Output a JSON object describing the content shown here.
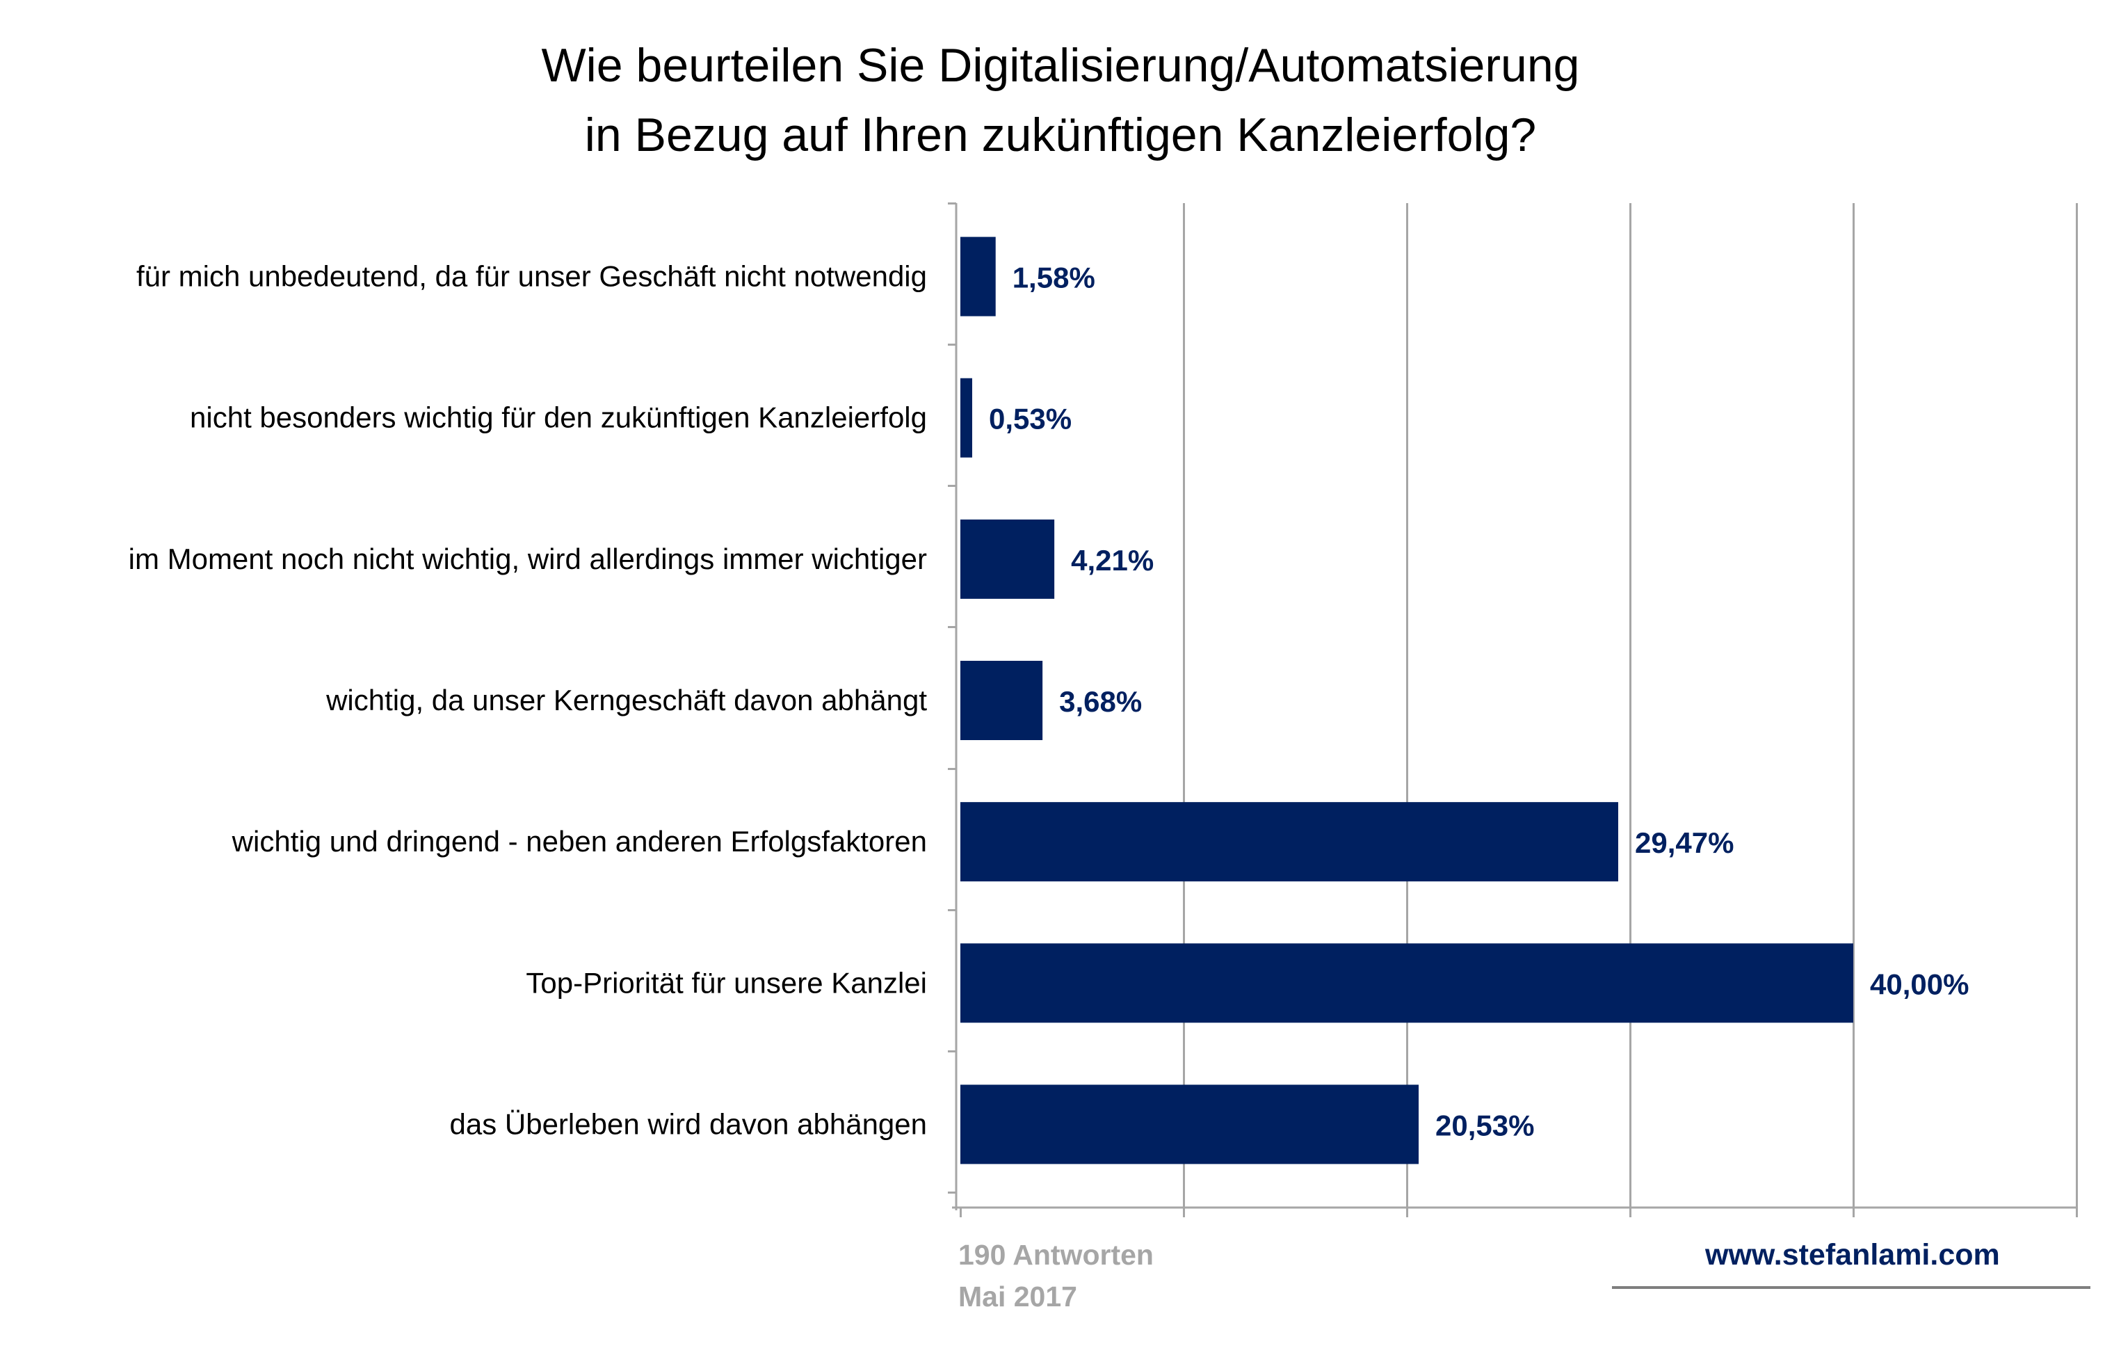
{
  "chart_data": {
    "type": "bar",
    "orientation": "horizontal",
    "title_lines": [
      "Wie beurteilen Sie Digitalisierung/Automatsierung",
      "in Bezug auf Ihren zukünftigen Kanzleierfolg?"
    ],
    "categories": [
      "für mich unbedeutend, da für unser Geschäft nicht notwendig",
      "nicht besonders wichtig für den zukünftigen Kanzleierfolg",
      "im Moment noch nicht wichtig, wird allerdings immer wichtiger",
      "wichtig, da unser Kerngeschäft davon abhängt",
      "wichtig und dringend - neben anderen Erfolgsfaktoren",
      "Top-Priorität für unsere Kanzlei",
      "das Überleben wird davon abhängen"
    ],
    "values": [
      1.58,
      0.53,
      4.21,
      3.68,
      29.47,
      40.0,
      20.53
    ],
    "value_labels": [
      "1,58%",
      "0,53%",
      "4,21%",
      "3,68%",
      "29,47%",
      "40,00%",
      "20,53%"
    ],
    "xlim": [
      0,
      50
    ],
    "x_gridline_step": 10,
    "x_tick_labels_shown": false,
    "grid": true,
    "legend": "none",
    "bar_color": "#002060",
    "value_label_color": "#002060",
    "gridline_color": "#a6a6a6"
  },
  "footer": {
    "responses": "190 Antworten",
    "date": "Mai 2017",
    "source": "www.stefanlami.com"
  },
  "colors": {
    "note": "#a6a6a6",
    "source": "#002060",
    "rule": "#7f7f7f"
  }
}
